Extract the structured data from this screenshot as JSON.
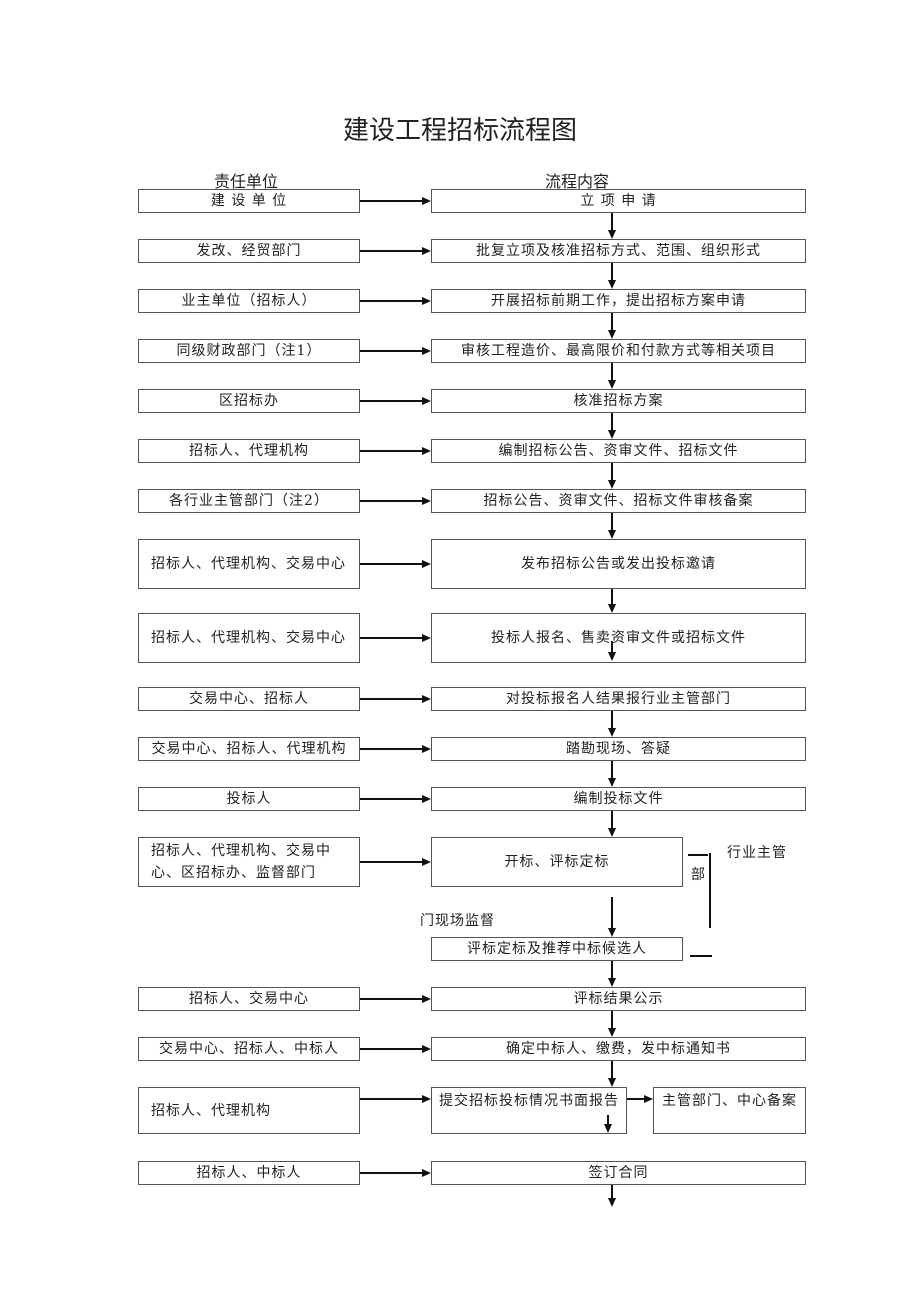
{
  "title": "建设工程招标流程图",
  "headers": {
    "left": "责任单位",
    "right": "流程内容"
  },
  "rows": [
    {
      "left": "建 设 单 位",
      "right": "立 项 申 请"
    },
    {
      "left": "发改、经贸部门",
      "right": "批复立项及核准招标方式、范围、组织形式"
    },
    {
      "left": "业主单位（招标人）",
      "right": "开展招标前期工作，提出招标方案申请"
    },
    {
      "left": "同级财政部门（注1）",
      "right": "审核工程造价、最高限价和付款方式等相关项目"
    },
    {
      "left": "区招标办",
      "right": "核准招标方案"
    },
    {
      "left": "招标人、代理机构",
      "right": "编制招标公告、资审文件、招标文件"
    },
    {
      "left": "各行业主管部门（注2）",
      "right": "招标公告、资审文件、招标文件审核备案"
    },
    {
      "left": "招标人、代理机构、交易中心",
      "right": "发布招标公告或发出投标邀请"
    },
    {
      "left": "招标人、代理机构、交易中心",
      "right": "投标人报名、售卖资审文件或招标文件"
    },
    {
      "left": "交易中心、招标人",
      "right": "对投标报名人结果报行业主管部门"
    },
    {
      "left": "交易中心、招标人、代理机构",
      "right": "踏勘现场、答疑"
    },
    {
      "left": "投标人",
      "right": "编制投标文件"
    },
    {
      "left": "招标人、代理机构、交易中心、区招标办、监督部门",
      "right": "开标、评标定标"
    },
    {
      "left": "",
      "right": "评标定标及推荐中标候选人"
    },
    {
      "left": "招标人、交易中心",
      "right": "评标结果公示"
    },
    {
      "left": "交易中心、招标人、中标人",
      "right": "确定中标人、缴费，发中标通知书"
    },
    {
      "left": "招标人、代理机构",
      "right": "提交招标投标情况书面报告",
      "extra": "主管部门、中心备案"
    },
    {
      "left": "招标人、中标人",
      "right": "签订合同"
    }
  ],
  "annotations": {
    "supervision_a": "行业主管",
    "supervision_b": "部",
    "supervision_c": "门现场监督"
  }
}
